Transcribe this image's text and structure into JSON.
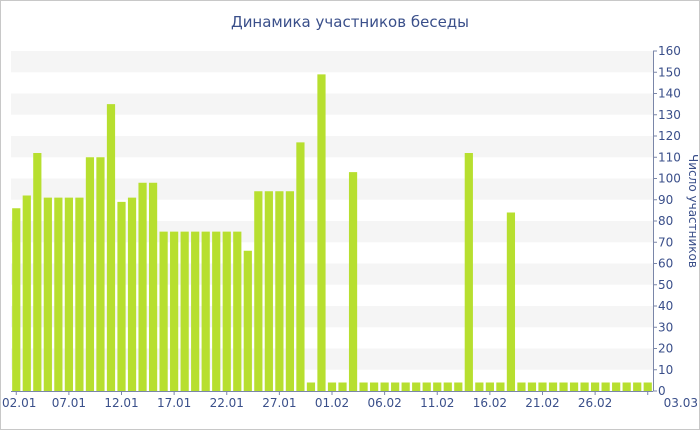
{
  "chart_data": {
    "type": "bar",
    "title": "Динамика участников беседы",
    "ylabel": "Число участников",
    "xlabel": "",
    "ylim": [
      0,
      160
    ],
    "yticks": [
      0,
      10,
      20,
      30,
      40,
      50,
      60,
      70,
      80,
      90,
      100,
      110,
      120,
      130,
      140,
      150,
      160
    ],
    "grid": "alternating horizontal bands",
    "y_axis_side": "right",
    "bar_color": "#b7df2f",
    "band_color": "#f5f5f5",
    "text_color": "#3a4f8a",
    "xtick_labels": [
      {
        "label": "02.01",
        "index": 0
      },
      {
        "label": "07.01",
        "index": 5
      },
      {
        "label": "12.01",
        "index": 10
      },
      {
        "label": "17.01",
        "index": 15
      },
      {
        "label": "22.01",
        "index": 20
      },
      {
        "label": "27.01",
        "index": 25
      },
      {
        "label": "01.02",
        "index": 30
      },
      {
        "label": "06.02",
        "index": 35
      },
      {
        "label": "11.02",
        "index": 40
      },
      {
        "label": "16.02",
        "index": 45
      },
      {
        "label": "21.02",
        "index": 50
      },
      {
        "label": "26.02",
        "index": 55
      },
      {
        "label": "03.03",
        "index": 60
      }
    ],
    "categories": [
      "02.01",
      "03.01",
      "04.01",
      "05.01",
      "06.01",
      "07.01",
      "08.01",
      "09.01",
      "10.01",
      "11.01",
      "12.01",
      "13.01",
      "14.01",
      "15.01",
      "16.01",
      "17.01",
      "18.01",
      "19.01",
      "20.01",
      "21.01",
      "22.01",
      "23.01",
      "24.01",
      "25.01",
      "26.01",
      "27.01",
      "28.01",
      "29.01",
      "30.01",
      "31.01",
      "01.02",
      "02.02",
      "03.02",
      "04.02",
      "05.02",
      "06.02",
      "07.02",
      "08.02",
      "09.02",
      "10.02",
      "11.02",
      "12.02",
      "13.02",
      "14.02",
      "15.02",
      "16.02",
      "17.02",
      "18.02",
      "19.02",
      "20.02",
      "21.02",
      "22.02",
      "23.02",
      "24.02",
      "25.02",
      "26.02",
      "27.02",
      "28.02",
      "01.03",
      "02.03",
      "03.03"
    ],
    "values": [
      86,
      92,
      112,
      91,
      91,
      91,
      91,
      110,
      110,
      135,
      89,
      91,
      98,
      98,
      75,
      75,
      75,
      75,
      75,
      75,
      75,
      75,
      66,
      94,
      94,
      94,
      94,
      117,
      4,
      149,
      4,
      4,
      103,
      4,
      4,
      4,
      4,
      4,
      4,
      4,
      4,
      4,
      4,
      112,
      4,
      4,
      4,
      84,
      4,
      4,
      4,
      4,
      4,
      4,
      4,
      4,
      4,
      4,
      4,
      4,
      4
    ]
  }
}
